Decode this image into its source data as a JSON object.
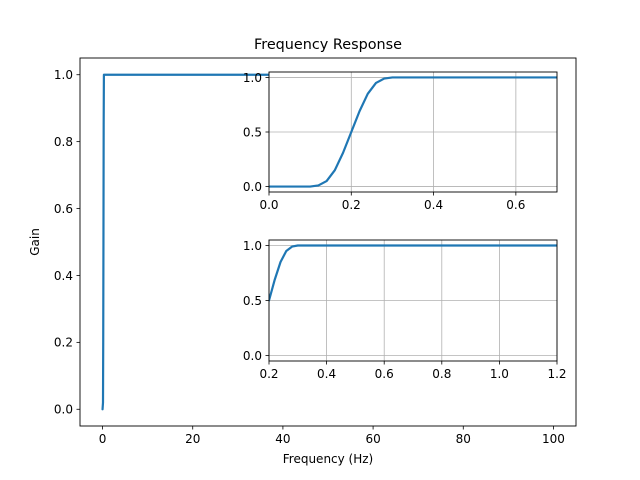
{
  "chart_data": [
    {
      "type": "line",
      "panel": "main",
      "title": "Frequency Response",
      "xlabel": "Frequency (Hz)",
      "ylabel": "Gain",
      "xlim": [
        -5,
        105
      ],
      "ylim": [
        -0.05,
        1.05
      ],
      "xticks": [
        0,
        20,
        40,
        60,
        80,
        100
      ],
      "xtick_labels": [
        "0",
        "20",
        "40",
        "60",
        "80",
        "100"
      ],
      "yticks": [
        0.0,
        0.2,
        0.4,
        0.6,
        0.8,
        1.0
      ],
      "ytick_labels": [
        "0.0",
        "0.2",
        "0.4",
        "0.6",
        "0.8",
        "1.0"
      ],
      "grid": false,
      "series": [
        {
          "color": "#1f77b4",
          "x": [
            0,
            0.1,
            0.15,
            0.2,
            0.25,
            0.3,
            0.5,
            1,
            5,
            20,
            40,
            60,
            80,
            100
          ],
          "y": [
            0.0,
            0.02,
            0.2,
            0.5,
            0.85,
            1.0,
            1.0,
            1.0,
            1.0,
            1.0,
            1.0,
            1.0,
            1.0,
            1.0
          ]
        }
      ]
    },
    {
      "type": "line",
      "panel": "inset-top",
      "title": "",
      "xlabel": "",
      "ylabel": "",
      "xlim": [
        0.0,
        0.7
      ],
      "ylim": [
        -0.05,
        1.05
      ],
      "xticks": [
        0.0,
        0.2,
        0.4,
        0.6
      ],
      "xtick_labels": [
        "0.0",
        "0.2",
        "0.4",
        "0.6"
      ],
      "yticks": [
        0.0,
        0.5,
        1.0
      ],
      "ytick_labels": [
        "0.0",
        "0.5",
        "1.0"
      ],
      "grid": true,
      "series": [
        {
          "color": "#1f77b4",
          "x": [
            0.0,
            0.05,
            0.1,
            0.12,
            0.14,
            0.16,
            0.18,
            0.2,
            0.22,
            0.24,
            0.26,
            0.28,
            0.3,
            0.35,
            0.4,
            0.5,
            0.6,
            0.7
          ],
          "y": [
            0.0,
            0.0,
            0.0,
            0.01,
            0.05,
            0.15,
            0.31,
            0.5,
            0.69,
            0.85,
            0.95,
            0.99,
            1.0,
            1.0,
            1.0,
            1.0,
            1.0,
            1.0
          ]
        }
      ]
    },
    {
      "type": "line",
      "panel": "inset-bottom",
      "title": "",
      "xlabel": "",
      "ylabel": "",
      "xlim": [
        0.2,
        1.2
      ],
      "ylim": [
        -0.05,
        1.05
      ],
      "xticks": [
        0.2,
        0.4,
        0.6,
        0.8,
        1.0,
        1.2
      ],
      "xtick_labels": [
        "0.2",
        "0.4",
        "0.6",
        "0.8",
        "1.0",
        "1.2"
      ],
      "yticks": [
        0.0,
        0.5,
        1.0
      ],
      "ytick_labels": [
        "0.0",
        "0.5",
        "1.0"
      ],
      "grid": true,
      "series": [
        {
          "color": "#1f77b4",
          "x": [
            0.2,
            0.22,
            0.24,
            0.26,
            0.28,
            0.3,
            0.35,
            0.4,
            0.6,
            0.8,
            1.0,
            1.2
          ],
          "y": [
            0.5,
            0.69,
            0.85,
            0.95,
            0.99,
            1.0,
            1.0,
            1.0,
            1.0,
            1.0,
            1.0,
            1.0
          ]
        }
      ]
    }
  ]
}
